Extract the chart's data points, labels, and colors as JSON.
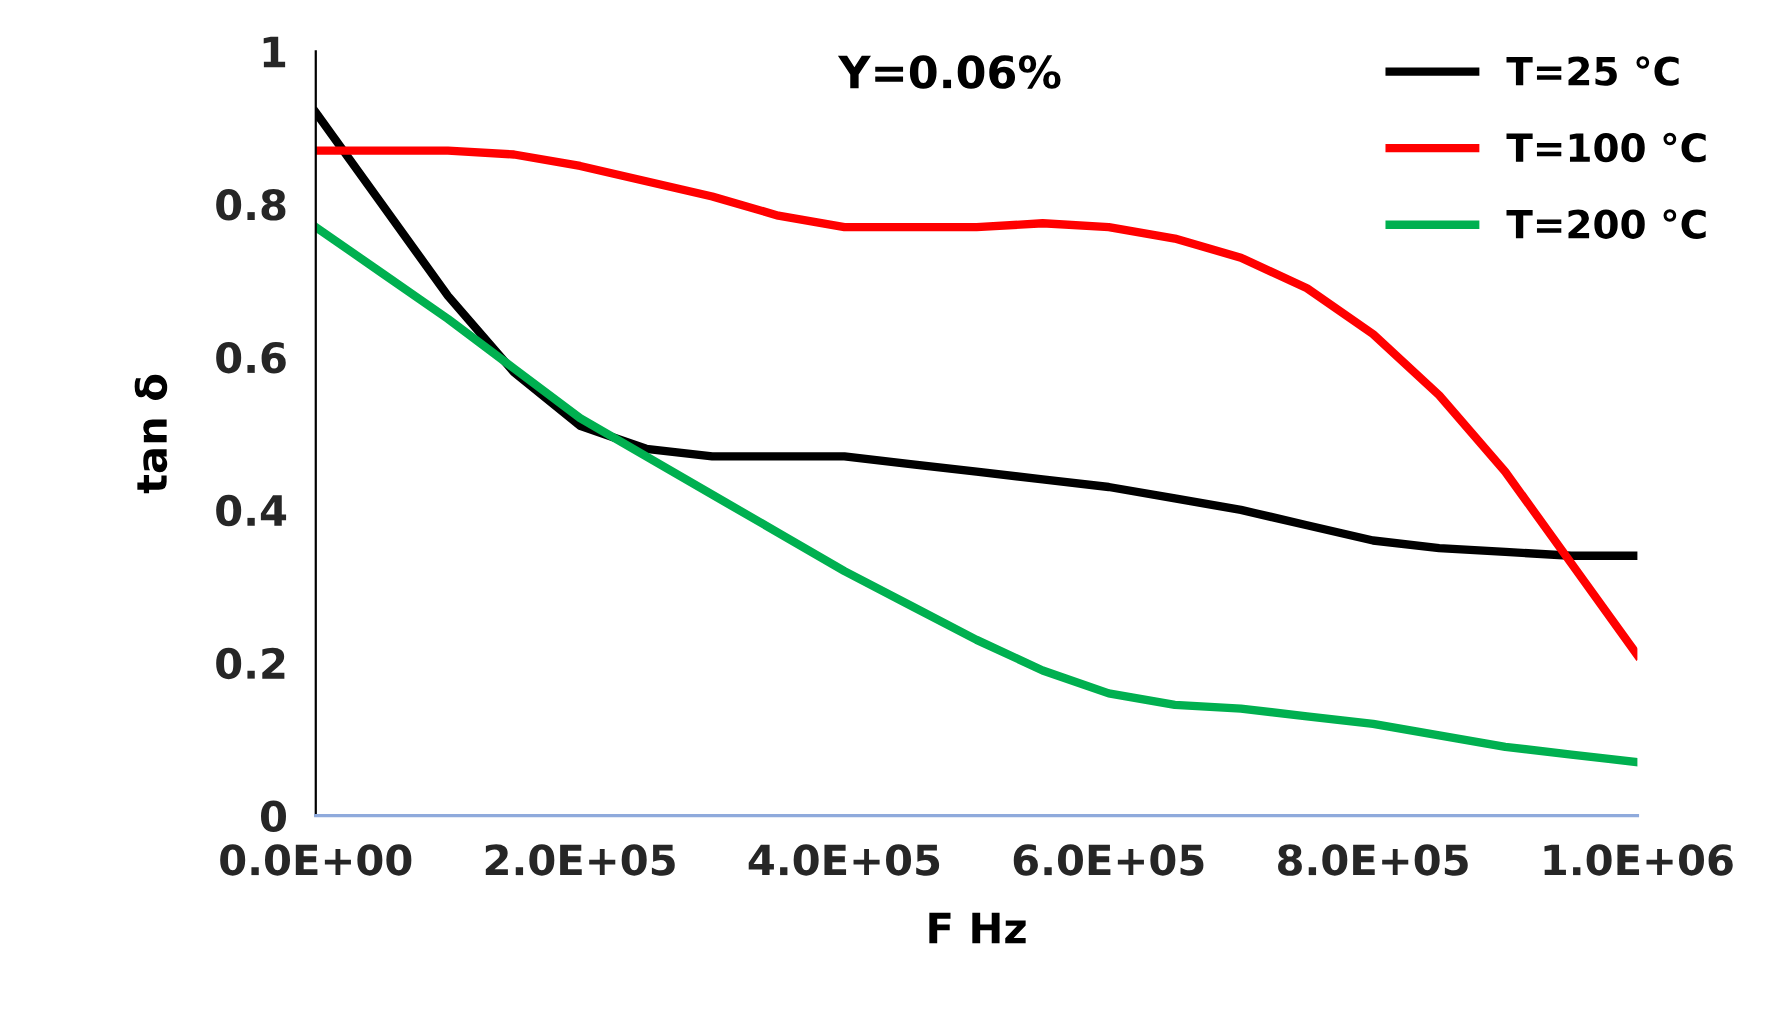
{
  "chart_data": {
    "type": "line",
    "title": "Y=0.06%",
    "xlabel": "F Hz",
    "ylabel": "tan δ",
    "x": [
      0,
      50000,
      100000,
      150000,
      200000,
      250000,
      300000,
      350000,
      400000,
      450000,
      500000,
      550000,
      600000,
      650000,
      700000,
      750000,
      800000,
      850000,
      900000,
      950000,
      1000000
    ],
    "series": [
      {
        "name": "T=25 °C",
        "color": "#000000",
        "values": [
          0.92,
          0.8,
          0.68,
          0.58,
          0.51,
          0.48,
          0.47,
          0.47,
          0.47,
          0.46,
          0.45,
          0.44,
          0.43,
          0.415,
          0.4,
          0.38,
          0.36,
          0.35,
          0.345,
          0.34,
          0.34
        ]
      },
      {
        "name": "T=100 °C",
        "color": "#ff0000",
        "values": [
          0.87,
          0.87,
          0.87,
          0.865,
          0.85,
          0.83,
          0.81,
          0.785,
          0.77,
          0.77,
          0.77,
          0.775,
          0.77,
          0.755,
          0.73,
          0.69,
          0.63,
          0.55,
          0.45,
          0.33,
          0.21
        ]
      },
      {
        "name": "T=200 °C",
        "color": "#00b050",
        "values": [
          0.77,
          0.71,
          0.65,
          0.585,
          0.52,
          0.47,
          0.42,
          0.37,
          0.32,
          0.275,
          0.23,
          0.19,
          0.16,
          0.145,
          0.14,
          0.13,
          0.12,
          0.105,
          0.09,
          0.08,
          0.07
        ]
      }
    ],
    "xlim": [
      0,
      1000000
    ],
    "ylim": [
      0,
      1
    ],
    "xticks": [
      {
        "value": 0,
        "label": "0.0E+00"
      },
      {
        "value": 200000,
        "label": "2.0E+05"
      },
      {
        "value": 400000,
        "label": "4.0E+05"
      },
      {
        "value": 600000,
        "label": "6.0E+05"
      },
      {
        "value": 800000,
        "label": "8.0E+05"
      },
      {
        "value": 1000000,
        "label": "1.0E+06"
      }
    ],
    "yticks": [
      0,
      0.2,
      0.4,
      0.6,
      0.8,
      1
    ],
    "grid": false,
    "legend": "top right",
    "marker": "none",
    "line_style": "solid"
  }
}
